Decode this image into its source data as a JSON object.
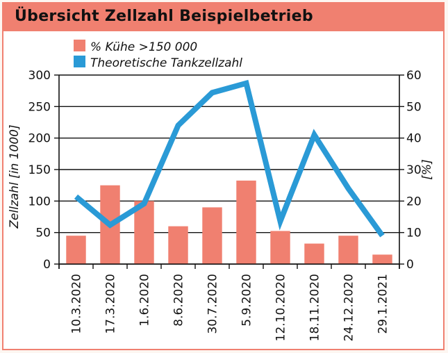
{
  "chart_data": {
    "type": "bar+line",
    "title": "Übersicht Zellzahl Beispielbetrieb",
    "categories": [
      "10.3.2020",
      "17.3.2020",
      "1.6.2020",
      "8.6.2020",
      "30.7.2020",
      "5.9.2020",
      "12.10.2020",
      "18.11.2020",
      "24.12.2020",
      "29.1.2021"
    ],
    "series": [
      {
        "name": "% Kühe >150 000",
        "type": "bar",
        "axis": "right",
        "color": "#f08070",
        "values": [
          9,
          25,
          20,
          12,
          18,
          26.5,
          10.5,
          6.5,
          9,
          3
        ]
      },
      {
        "name": "Theoretische Tankzellzahl",
        "type": "line",
        "axis": "left",
        "color": "#2a9ad6",
        "values": [
          107,
          62,
          96,
          220,
          272,
          287,
          68,
          205,
          120,
          45
        ]
      }
    ],
    "ylabel_left": "Zellzahl [in 1000]",
    "ylabel_right": "[%]",
    "ylim_left": [
      0,
      300
    ],
    "ylim_right": [
      0,
      60
    ],
    "yticks_left": [
      "0",
      "50",
      "100",
      "150",
      "200",
      "250",
      "300"
    ],
    "yticks_right": [
      "0",
      "10",
      "20",
      "30",
      "40",
      "50",
      "60"
    ],
    "legend": [
      "% Kühe >150 000",
      "Theoretische Tankzellzahl"
    ],
    "grid": true
  }
}
